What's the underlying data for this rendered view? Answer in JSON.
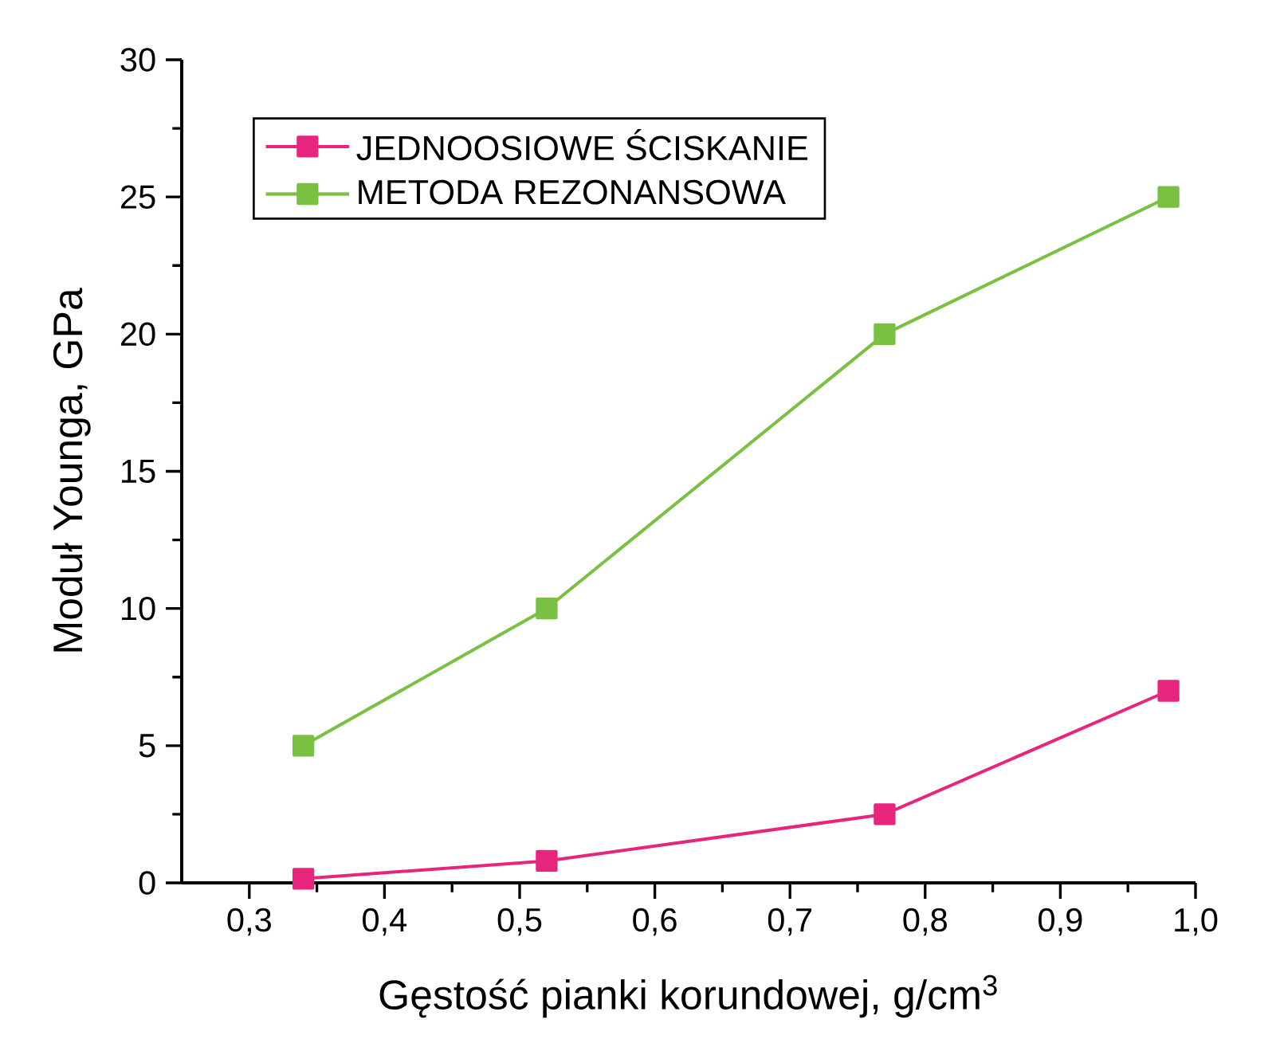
{
  "chart_data": {
    "type": "line",
    "xlabel": "Gęstość pianki korundowej, g/cm$^{3}$",
    "ylabel": "Moduł Younga, GPa",
    "x": [
      0.34,
      0.52,
      0.77,
      0.98
    ],
    "series": [
      {
        "name": "JEDNOOSIOWE ŚCISKANIE",
        "color": "#e8257d",
        "values": [
          0.15,
          0.8,
          2.5,
          7
        ]
      },
      {
        "name": "METODA REZONANSOWA",
        "color": "#7ac143",
        "values": [
          5,
          10,
          20,
          25
        ]
      }
    ],
    "xlim": [
      0.25,
      1.0
    ],
    "ylim": [
      0,
      30
    ],
    "xticks": [
      {
        "value": 0.3,
        "label": "0,3"
      },
      {
        "value": 0.4,
        "label": "0,4"
      },
      {
        "value": 0.5,
        "label": "0,5"
      },
      {
        "value": 0.6,
        "label": "0,6"
      },
      {
        "value": 0.7,
        "label": "0,7"
      },
      {
        "value": 0.8,
        "label": "0,8"
      },
      {
        "value": 0.9,
        "label": "0,9"
      },
      {
        "value": 1.0,
        "label": "1,0"
      }
    ],
    "yticks": [
      0,
      5,
      10,
      15,
      20,
      25,
      30
    ],
    "legend": "top left",
    "marker": "square",
    "line_style": "solid"
  }
}
